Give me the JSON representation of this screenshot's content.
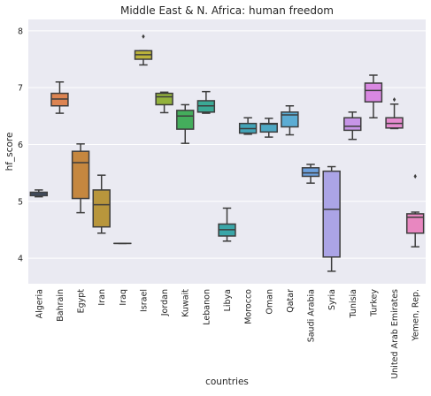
{
  "chart_data": {
    "type": "box",
    "title": "Middle East & N. Africa: human freedom",
    "xlabel": "countries",
    "ylabel": "hf_score",
    "ylim": [
      3.55,
      8.2
    ],
    "yticks": [
      4,
      5,
      6,
      7,
      8
    ],
    "grid": true,
    "background": "#eaeaf2",
    "categories": [
      "Algeria",
      "Bahrain",
      "Egypt",
      "Iran",
      "Iraq",
      "Israel",
      "Jordan",
      "Kuwait",
      "Lebanon",
      "Libya",
      "Morocco",
      "Oman",
      "Qatar",
      "Saudi Arabia",
      "Syria",
      "Tunisia",
      "Turkey",
      "United Arab Emirates",
      "Yemen, Rep."
    ],
    "colors": [
      "#4c72b0",
      "#dd8452",
      "#c5873f",
      "#b8963c",
      "#a5a135",
      "#bcb33b",
      "#93b23d",
      "#44ad5c",
      "#3ba995",
      "#3aa6a8",
      "#43a4b8",
      "#4ea8c4",
      "#5bacd3",
      "#6ca0dd",
      "#aba4e6",
      "#c795e8",
      "#d988e2",
      "#e58bcf",
      "#e887c0"
    ],
    "boxes": [
      {
        "whislo": 5.08,
        "q1": 5.1,
        "med": 5.13,
        "q3": 5.16,
        "whishi": 5.2,
        "fliers": []
      },
      {
        "whislo": 6.55,
        "q1": 6.68,
        "med": 6.8,
        "q3": 6.9,
        "whishi": 7.1,
        "fliers": []
      },
      {
        "whislo": 4.8,
        "q1": 5.05,
        "med": 5.68,
        "q3": 5.88,
        "whishi": 6.01,
        "fliers": []
      },
      {
        "whislo": 4.44,
        "q1": 4.55,
        "med": 4.94,
        "q3": 5.2,
        "whishi": 5.46,
        "fliers": []
      },
      {
        "whislo": 4.26,
        "q1": 4.26,
        "med": 4.26,
        "q3": 4.26,
        "whishi": 4.26,
        "fliers": []
      },
      {
        "whislo": 7.4,
        "q1": 7.5,
        "med": 7.58,
        "q3": 7.65,
        "whishi": 7.65,
        "fliers": [
          7.9
        ]
      },
      {
        "whislo": 6.56,
        "q1": 6.7,
        "med": 6.84,
        "q3": 6.9,
        "whishi": 6.92,
        "fliers": []
      },
      {
        "whislo": 6.02,
        "q1": 6.27,
        "med": 6.5,
        "q3": 6.6,
        "whishi": 6.7,
        "fliers": []
      },
      {
        "whislo": 6.55,
        "q1": 6.57,
        "med": 6.68,
        "q3": 6.77,
        "whishi": 6.93,
        "fliers": []
      },
      {
        "whislo": 4.3,
        "q1": 4.39,
        "med": 4.5,
        "q3": 4.6,
        "whishi": 4.88,
        "fliers": []
      },
      {
        "whislo": 6.18,
        "q1": 6.2,
        "med": 6.28,
        "q3": 6.37,
        "whishi": 6.47,
        "fliers": []
      },
      {
        "whislo": 6.13,
        "q1": 6.22,
        "med": 6.36,
        "q3": 6.37,
        "whishi": 6.46,
        "fliers": []
      },
      {
        "whislo": 6.17,
        "q1": 6.31,
        "med": 6.52,
        "q3": 6.57,
        "whishi": 6.68,
        "fliers": []
      },
      {
        "whislo": 5.32,
        "q1": 5.44,
        "med": 5.5,
        "q3": 5.59,
        "whishi": 5.65,
        "fliers": []
      },
      {
        "whislo": 3.77,
        "q1": 4.02,
        "med": 4.86,
        "q3": 5.53,
        "whishi": 5.61,
        "fliers": []
      },
      {
        "whislo": 6.09,
        "q1": 6.25,
        "med": 6.32,
        "q3": 6.47,
        "whishi": 6.57,
        "fliers": []
      },
      {
        "whislo": 6.47,
        "q1": 6.75,
        "med": 6.95,
        "q3": 7.08,
        "whishi": 7.22,
        "fliers": []
      },
      {
        "whislo": 6.28,
        "q1": 6.29,
        "med": 6.37,
        "q3": 6.47,
        "whishi": 6.71,
        "fliers": [
          6.79
        ]
      },
      {
        "whislo": 4.2,
        "q1": 4.44,
        "med": 4.72,
        "q3": 4.78,
        "whishi": 4.81,
        "fliers": [
          5.44
        ]
      }
    ]
  }
}
